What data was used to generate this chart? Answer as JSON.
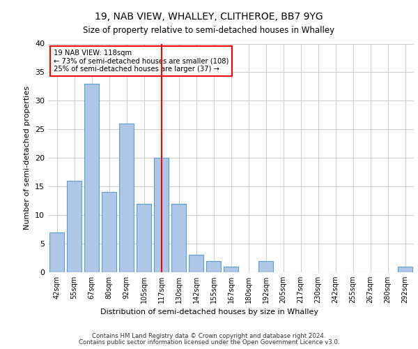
{
  "title1": "19, NAB VIEW, WHALLEY, CLITHEROE, BB7 9YG",
  "title2": "Size of property relative to semi-detached houses in Whalley",
  "xlabel": "Distribution of semi-detached houses by size in Whalley",
  "ylabel": "Number of semi-detached properties",
  "categories": [
    "42sqm",
    "55sqm",
    "67sqm",
    "80sqm",
    "92sqm",
    "105sqm",
    "117sqm",
    "130sqm",
    "142sqm",
    "155sqm",
    "167sqm",
    "180sqm",
    "192sqm",
    "205sqm",
    "217sqm",
    "230sqm",
    "242sqm",
    "255sqm",
    "267sqm",
    "280sqm",
    "292sqm"
  ],
  "values": [
    7,
    16,
    33,
    14,
    26,
    12,
    20,
    12,
    3,
    2,
    1,
    0,
    2,
    0,
    0,
    0,
    0,
    0,
    0,
    0,
    1
  ],
  "bar_color": "#aec6e8",
  "bar_edgecolor": "#5a9fd4",
  "highlight_index": 6,
  "annotation_text": "19 NAB VIEW: 118sqm\n← 73% of semi-detached houses are smaller (108)\n25% of semi-detached houses are larger (37) →",
  "ylim": [
    0,
    40
  ],
  "yticks": [
    0,
    5,
    10,
    15,
    20,
    25,
    30,
    35,
    40
  ],
  "footer1": "Contains HM Land Registry data © Crown copyright and database right 2024.",
  "footer2": "Contains public sector information licensed under the Open Government Licence v3.0."
}
